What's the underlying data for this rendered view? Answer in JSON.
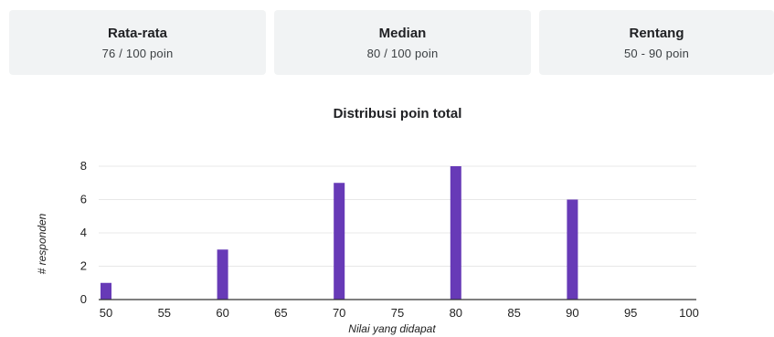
{
  "stats": [
    {
      "title": "Rata-rata",
      "value": "76 / 100 poin"
    },
    {
      "title": "Median",
      "value": "80 / 100 poin"
    },
    {
      "title": "Rentang",
      "value": "50 - 90 poin"
    }
  ],
  "colors": {
    "bar": "#673ab7",
    "card_bg": "#f1f3f4",
    "grid": "#e8e8e8",
    "axis": "#333333"
  },
  "chart_data": {
    "type": "bar",
    "title": "Distribusi poin total",
    "xlabel": "Nilai yang didapat",
    "ylabel": "# responden",
    "x_ticks": [
      "50",
      "55",
      "60",
      "65",
      "70",
      "75",
      "80",
      "85",
      "90",
      "95",
      "100"
    ],
    "y_ticks": [
      "0",
      "2",
      "4",
      "6",
      "8"
    ],
    "xlim": [
      50,
      100
    ],
    "ylim": [
      0,
      8
    ],
    "grid": true,
    "legend": "none",
    "x": [
      50,
      60,
      70,
      80,
      90
    ],
    "values": [
      1,
      3,
      7,
      8,
      6
    ]
  }
}
